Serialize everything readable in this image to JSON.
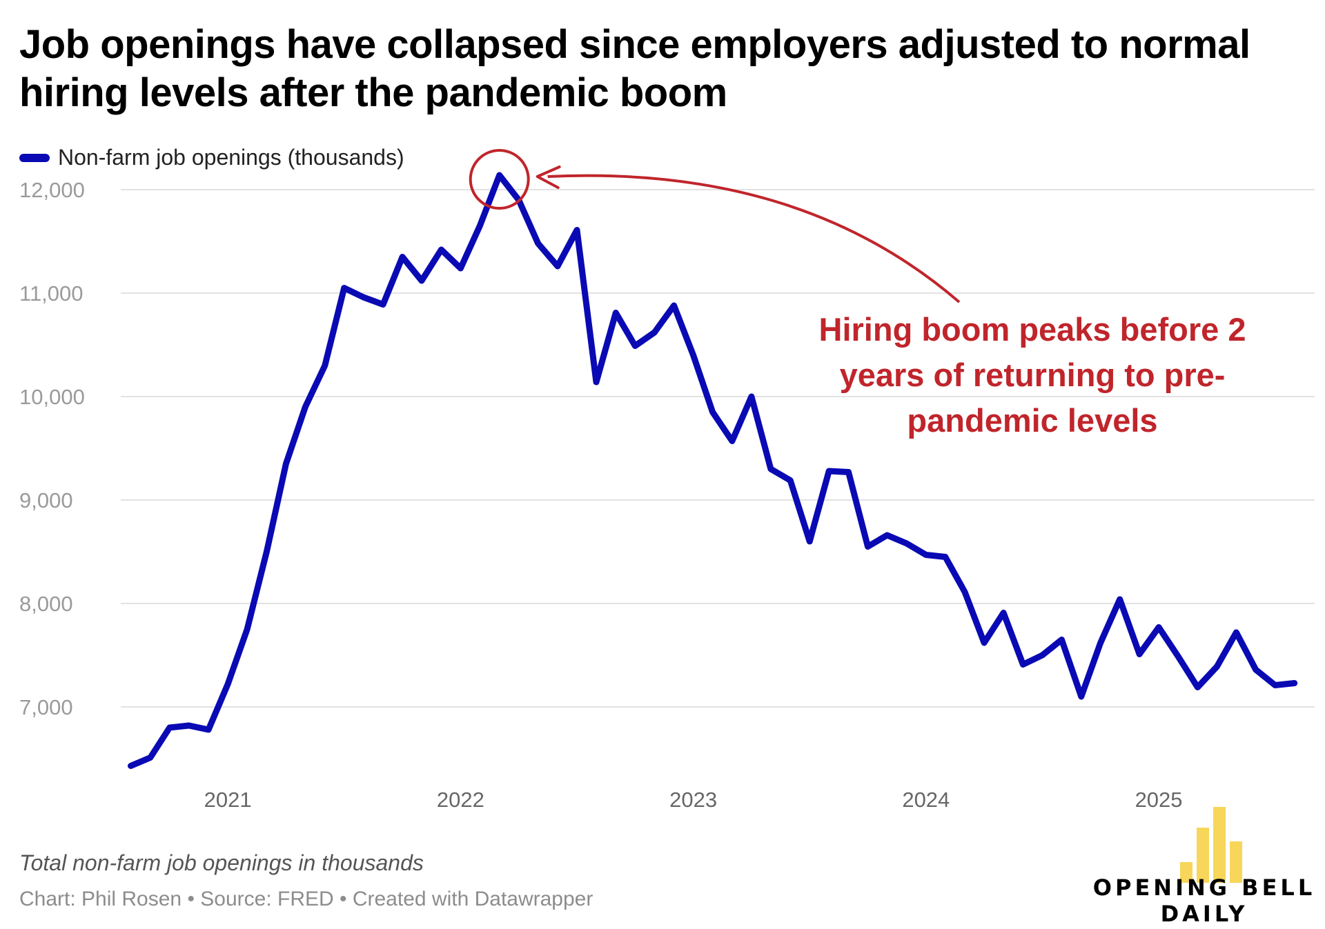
{
  "title": "Job openings have collapsed since employers adjusted to normal hiring levels after the pandemic boom",
  "legend": {
    "label": "Non-farm job openings (thousands)",
    "color": "#0a0ab4"
  },
  "subtitle": "Total non-farm job openings in thousands",
  "source": "Chart: Phil Rosen • Source: FRED • Created with Datawrapper",
  "logo": {
    "line1": "OPENING BELL",
    "line2": "DAILY",
    "color": "#f7d65a"
  },
  "chart_data": {
    "type": "line",
    "title": "Job openings have collapsed since employers adjusted to normal hiring levels after the pandemic boom",
    "xlabel": "",
    "ylabel": "",
    "ylim": [
      6300,
      12300
    ],
    "xlim": [
      2020.54,
      2025.67
    ],
    "y_ticks": [
      7000,
      8000,
      9000,
      10000,
      11000,
      12000
    ],
    "y_tick_labels": [
      "7,000",
      "8,000",
      "9,000",
      "10,000",
      "11,000",
      "12,000"
    ],
    "x_ticks": [
      2021,
      2022,
      2023,
      2024,
      2025
    ],
    "x_tick_labels": [
      "2021",
      "2022",
      "2023",
      "2024",
      "2025"
    ],
    "grid": true,
    "series": [
      {
        "name": "Non-farm job openings (thousands)",
        "color": "#0a0ab4",
        "x": [
          2020.583,
          2020.667,
          2020.75,
          2020.833,
          2020.917,
          2021.0,
          2021.083,
          2021.167,
          2021.25,
          2021.333,
          2021.417,
          2021.5,
          2021.583,
          2021.667,
          2021.75,
          2021.833,
          2021.917,
          2022.0,
          2022.083,
          2022.167,
          2022.25,
          2022.333,
          2022.417,
          2022.5,
          2022.583,
          2022.667,
          2022.75,
          2022.833,
          2022.917,
          2023.0,
          2023.083,
          2023.167,
          2023.25,
          2023.333,
          2023.417,
          2023.5,
          2023.583,
          2023.667,
          2023.75,
          2023.833,
          2023.917,
          2024.0,
          2024.083,
          2024.167,
          2024.25,
          2024.333,
          2024.417,
          2024.5,
          2024.583,
          2024.667,
          2024.75,
          2024.833,
          2024.917,
          2025.0,
          2025.083,
          2025.167,
          2025.25,
          2025.333,
          2025.417,
          2025.5,
          2025.583
        ],
        "values": [
          6430,
          6510,
          6800,
          6820,
          6780,
          7220,
          7750,
          8500,
          9350,
          9900,
          10300,
          11050,
          10960,
          10890,
          11350,
          11120,
          11420,
          11240,
          11650,
          12140,
          11900,
          11480,
          11260,
          11610,
          10140,
          10810,
          10490,
          10620,
          10880,
          10400,
          9850,
          9570,
          10000,
          9300,
          9190,
          8600,
          9280,
          9270,
          8550,
          8660,
          8580,
          8470,
          8450,
          8110,
          7620,
          7910,
          7410,
          7500,
          7650,
          7100,
          7620,
          8040,
          7510,
          7770,
          7490,
          7190,
          7390,
          7720,
          7360,
          7210,
          7230
        ]
      }
    ],
    "annotations": [
      {
        "text": "Hiring boom peaks before 2 years of returning to pre-pandemic levels",
        "lines": [
          "Hiring boom peaks before 2",
          "years of returning to pre-",
          "pandemic levels"
        ],
        "color": "#c0252b",
        "target_x": 2022.167,
        "target_y": 12140
      }
    ]
  }
}
